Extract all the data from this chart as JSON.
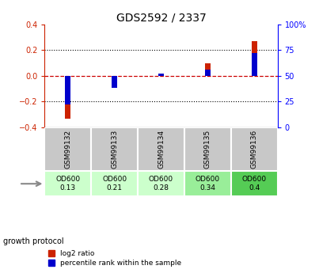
{
  "title": "GDS2592 / 2337",
  "samples": [
    "GSM99132",
    "GSM99133",
    "GSM99134",
    "GSM99135",
    "GSM99136"
  ],
  "log2_ratio": [
    -0.335,
    -0.055,
    0.018,
    0.1,
    0.27
  ],
  "percentile_rank": [
    22,
    38,
    52,
    56,
    72
  ],
  "protocol_label": "growth protocol",
  "protocol_values": [
    "OD600\n0.13",
    "OD600\n0.21",
    "OD600\n0.28",
    "OD600\n0.34",
    "OD600\n0.4"
  ],
  "protocol_colors": [
    "#ccffcc",
    "#ccffcc",
    "#ccffcc",
    "#99ee99",
    "#55cc55"
  ],
  "ylim_left": [
    -0.4,
    0.4
  ],
  "ylim_right": [
    0,
    100
  ],
  "yticks_left": [
    -0.4,
    -0.2,
    0.0,
    0.2,
    0.4
  ],
  "yticks_right": [
    0,
    25,
    50,
    75,
    100
  ],
  "bar_width": 0.12,
  "red_color": "#cc2200",
  "blue_color": "#0000cc",
  "zero_line_color": "#cc0000",
  "grid_color": "#000000",
  "bg_plot": "#ffffff",
  "bg_table": "#c8c8c8",
  "legend_red": "log2 ratio",
  "legend_blue": "percentile rank within the sample"
}
